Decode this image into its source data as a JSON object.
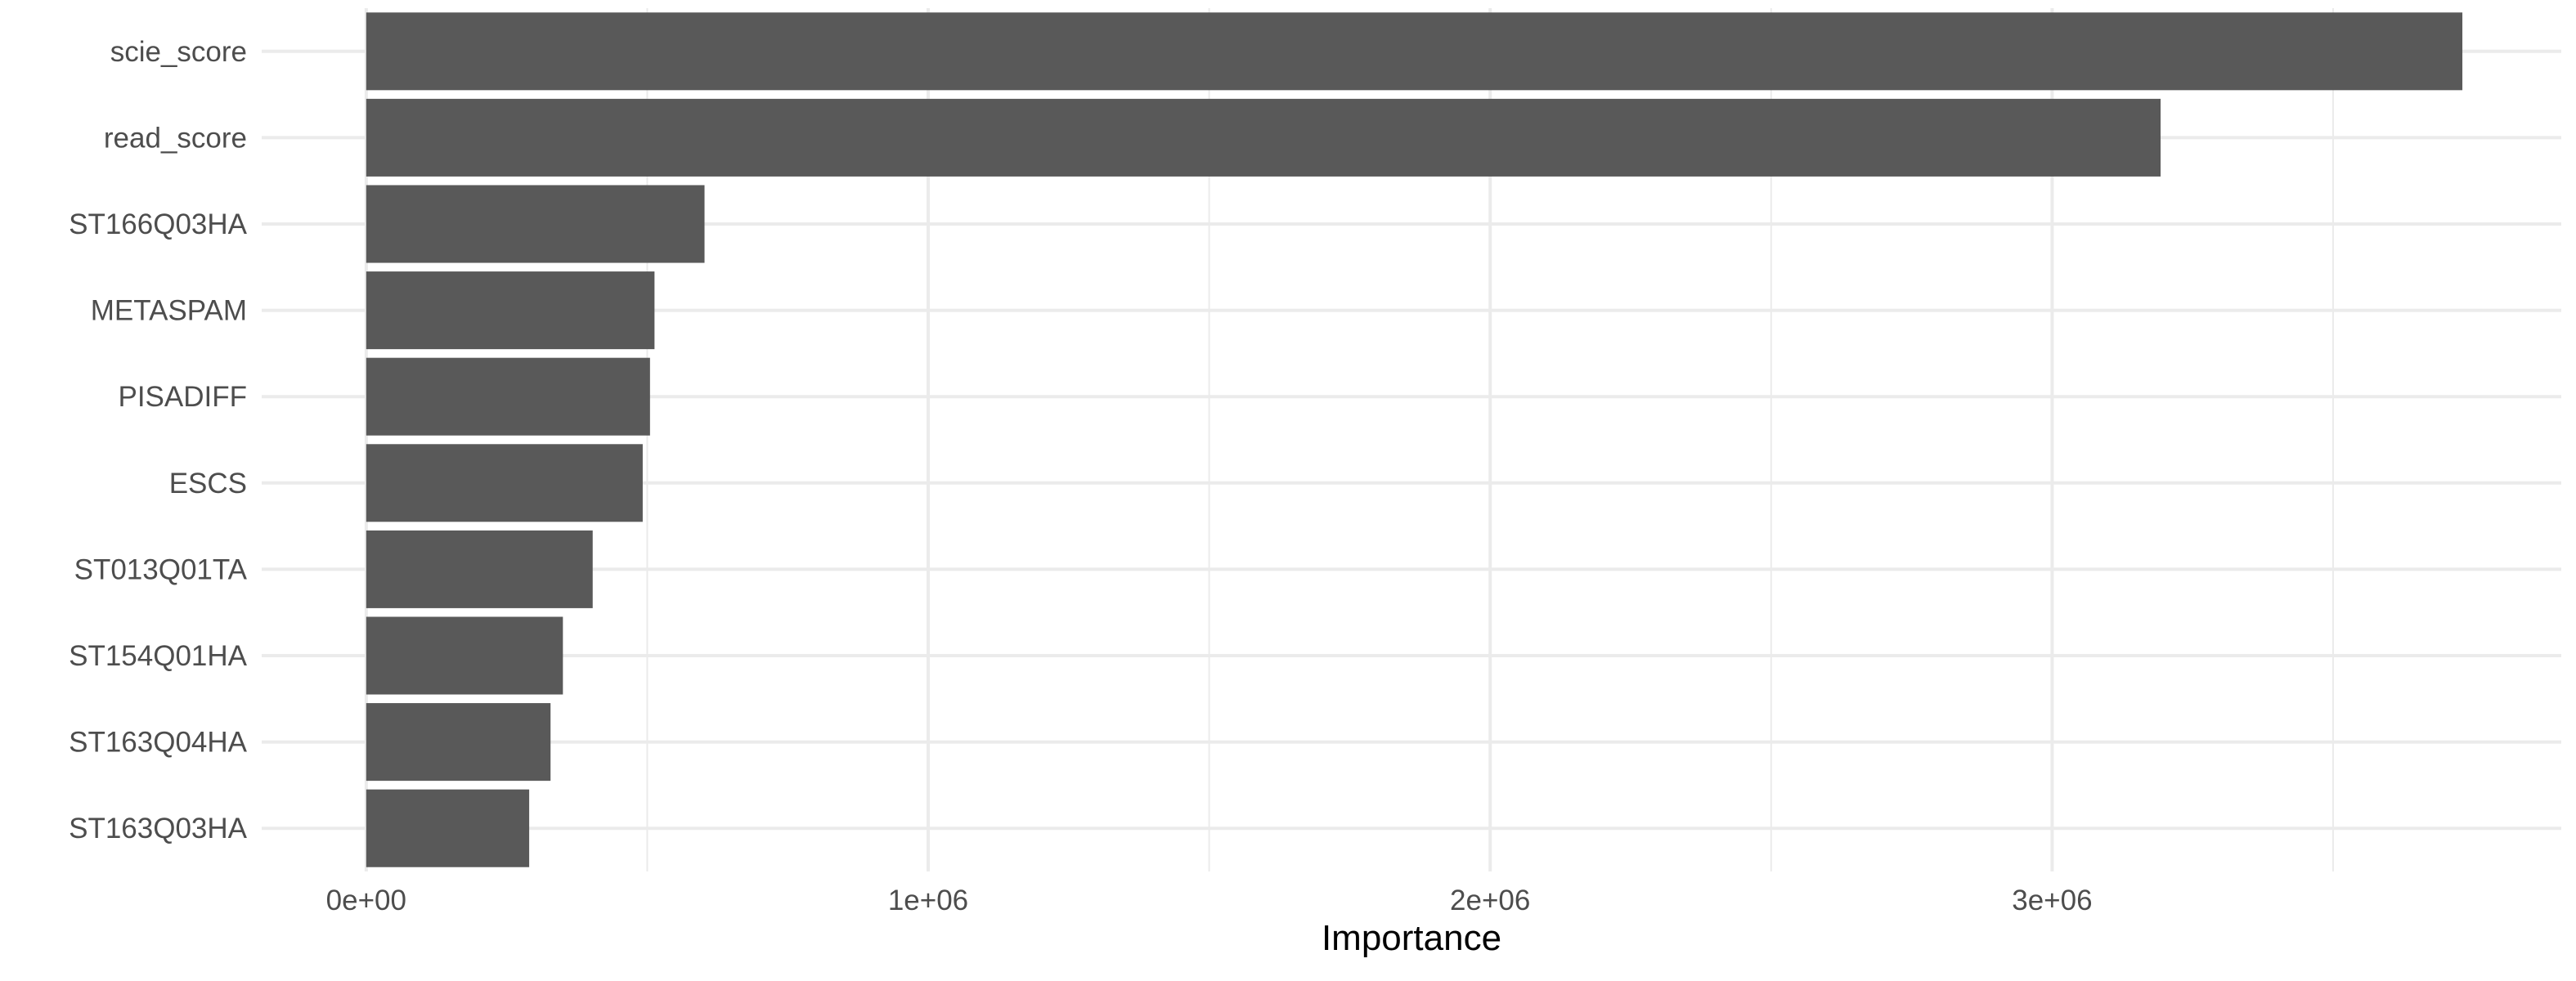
{
  "chart_data": {
    "type": "bar",
    "orientation": "horizontal",
    "categories": [
      "scie_score",
      "read_score",
      "ST166Q03HA",
      "METASPAM",
      "PISADIFF",
      "ESCS",
      "ST013Q01TA",
      "ST154Q01HA",
      "ST163Q04HA",
      "ST163Q03HA"
    ],
    "values": [
      3730000,
      3193000,
      602000,
      513000,
      505000,
      492000,
      403000,
      350000,
      328000,
      290000
    ],
    "xlabel": "Importance",
    "ylabel": "",
    "xlim": [
      -186000,
      3906000
    ],
    "x_ticks": [
      0,
      1000000,
      2000000,
      3000000
    ],
    "x_tick_labels": [
      "0e+00",
      "1e+06",
      "2e+06",
      "3e+06"
    ],
    "grid": true,
    "bar_color": "#595959",
    "grid_color": "#ebebeb",
    "background_color": "#ffffff"
  }
}
